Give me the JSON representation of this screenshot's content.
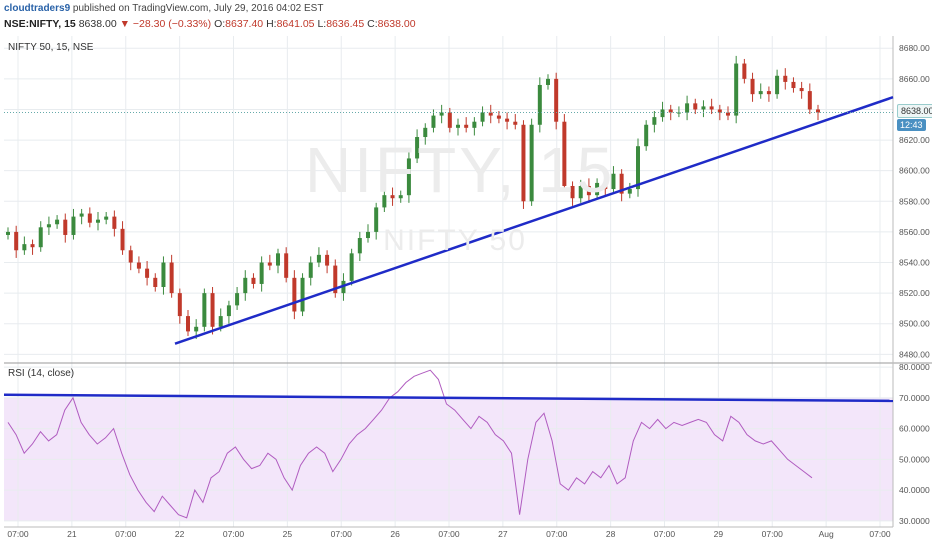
{
  "header": {
    "user": "cloudtraders9",
    "published": "published on TradingView.com, July 29, 2016 04:02 EST",
    "symbol": "NSE:NIFTY, 15",
    "last": "8638.00",
    "arrow": "▼",
    "change": "−28.30 (−0.33%)",
    "o_label": "O:",
    "o_val": "8637.40",
    "h_label": "H:",
    "h_val": "8641.05",
    "l_label": "L:",
    "l_val": "8636.45",
    "c_label": "C:",
    "c_val": "8638.00"
  },
  "price_pane": {
    "title": "NIFTY 50, 15, NSE"
  },
  "rsi_pane": {
    "title": "RSI (14, close)"
  },
  "watermark": {
    "symbol": "NIFTY, 15",
    "name": "NIFTY 50"
  },
  "price_tag": "8638.00",
  "timer_tag": "12:43",
  "colors": {
    "up": "#3b8a3e",
    "down": "#c0392b",
    "trendline": "#1f2bc7",
    "rsi_line": "#b05cc0",
    "rsi_band": "#f3e6fa",
    "grid": "#e8ecef"
  },
  "chart_data": [
    {
      "type": "candlestick",
      "title": "NIFTY 50, 15, NSE",
      "ylim": [
        8475,
        8688
      ],
      "y_ticks": [
        "8680.00",
        "8660.00",
        "8640.00",
        "8620.00",
        "8600.00",
        "8580.00",
        "8560.00",
        "8540.00",
        "8520.00",
        "8500.00",
        "8480.00"
      ],
      "x_ticks": [
        "07:00",
        "21",
        "07:00",
        "22",
        "07:00",
        "25",
        "07:00",
        "26",
        "07:00",
        "27",
        "07:00",
        "28",
        "07:00",
        "29",
        "07:00",
        "Aug",
        "07:00"
      ],
      "closes": [
        8560,
        8548,
        8552,
        8550,
        8563,
        8565,
        8568,
        8558,
        8570,
        8572,
        8566,
        8568,
        8570,
        8562,
        8548,
        8540,
        8536,
        8530,
        8524,
        8540,
        8520,
        8505,
        8495,
        8498,
        8520,
        8498,
        8505,
        8512,
        8520,
        8530,
        8526,
        8540,
        8538,
        8546,
        8530,
        8508,
        8530,
        8540,
        8545,
        8538,
        8520,
        8528,
        8546,
        8556,
        8560,
        8576,
        8584,
        8582,
        8584,
        8608,
        8622,
        8628,
        8636,
        8638,
        8628,
        8630,
        8628,
        8632,
        8638,
        8636,
        8634,
        8632,
        8630,
        8580,
        8630,
        8656,
        8660,
        8632,
        8590,
        8582,
        8590,
        8584,
        8592,
        8588,
        8598,
        8585,
        8588,
        8616,
        8630,
        8635,
        8640,
        8638,
        8638,
        8644,
        8640,
        8642,
        8640,
        8638,
        8636,
        8670,
        8660,
        8650,
        8652,
        8650,
        8662,
        8658,
        8654,
        8652,
        8640,
        8638
      ],
      "trendline": [
        [
          8487,
          8648
        ]
      ]
    },
    {
      "type": "line",
      "title": "RSI (14, close)",
      "ylim": [
        28,
        81
      ],
      "y_ticks": [
        "80.0000",
        "70.0000",
        "60.0000",
        "50.0000",
        "40.0000",
        "30.0000"
      ],
      "band": [
        30,
        70
      ],
      "values": [
        62,
        58,
        52,
        55,
        59,
        56,
        58,
        66,
        70,
        62,
        58,
        55,
        57,
        60,
        52,
        45,
        40,
        36,
        33,
        38,
        35,
        32,
        31,
        40,
        36,
        44,
        46,
        52,
        54,
        50,
        47,
        48,
        52,
        50,
        44,
        40,
        48,
        52,
        54,
        52,
        46,
        50,
        55,
        58,
        60,
        63,
        66,
        70,
        72,
        75,
        77,
        78,
        79,
        76,
        68,
        66,
        63,
        60,
        64,
        62,
        58,
        56,
        52,
        32,
        50,
        62,
        65,
        56,
        42,
        40,
        44,
        42,
        46,
        44,
        48,
        42,
        44,
        56,
        62,
        60,
        63,
        60,
        62,
        61,
        62,
        63,
        62,
        58,
        56,
        64,
        62,
        58,
        56,
        55,
        56,
        53,
        50,
        48,
        46,
        44
      ],
      "trendline": [
        71,
        69
      ]
    }
  ]
}
